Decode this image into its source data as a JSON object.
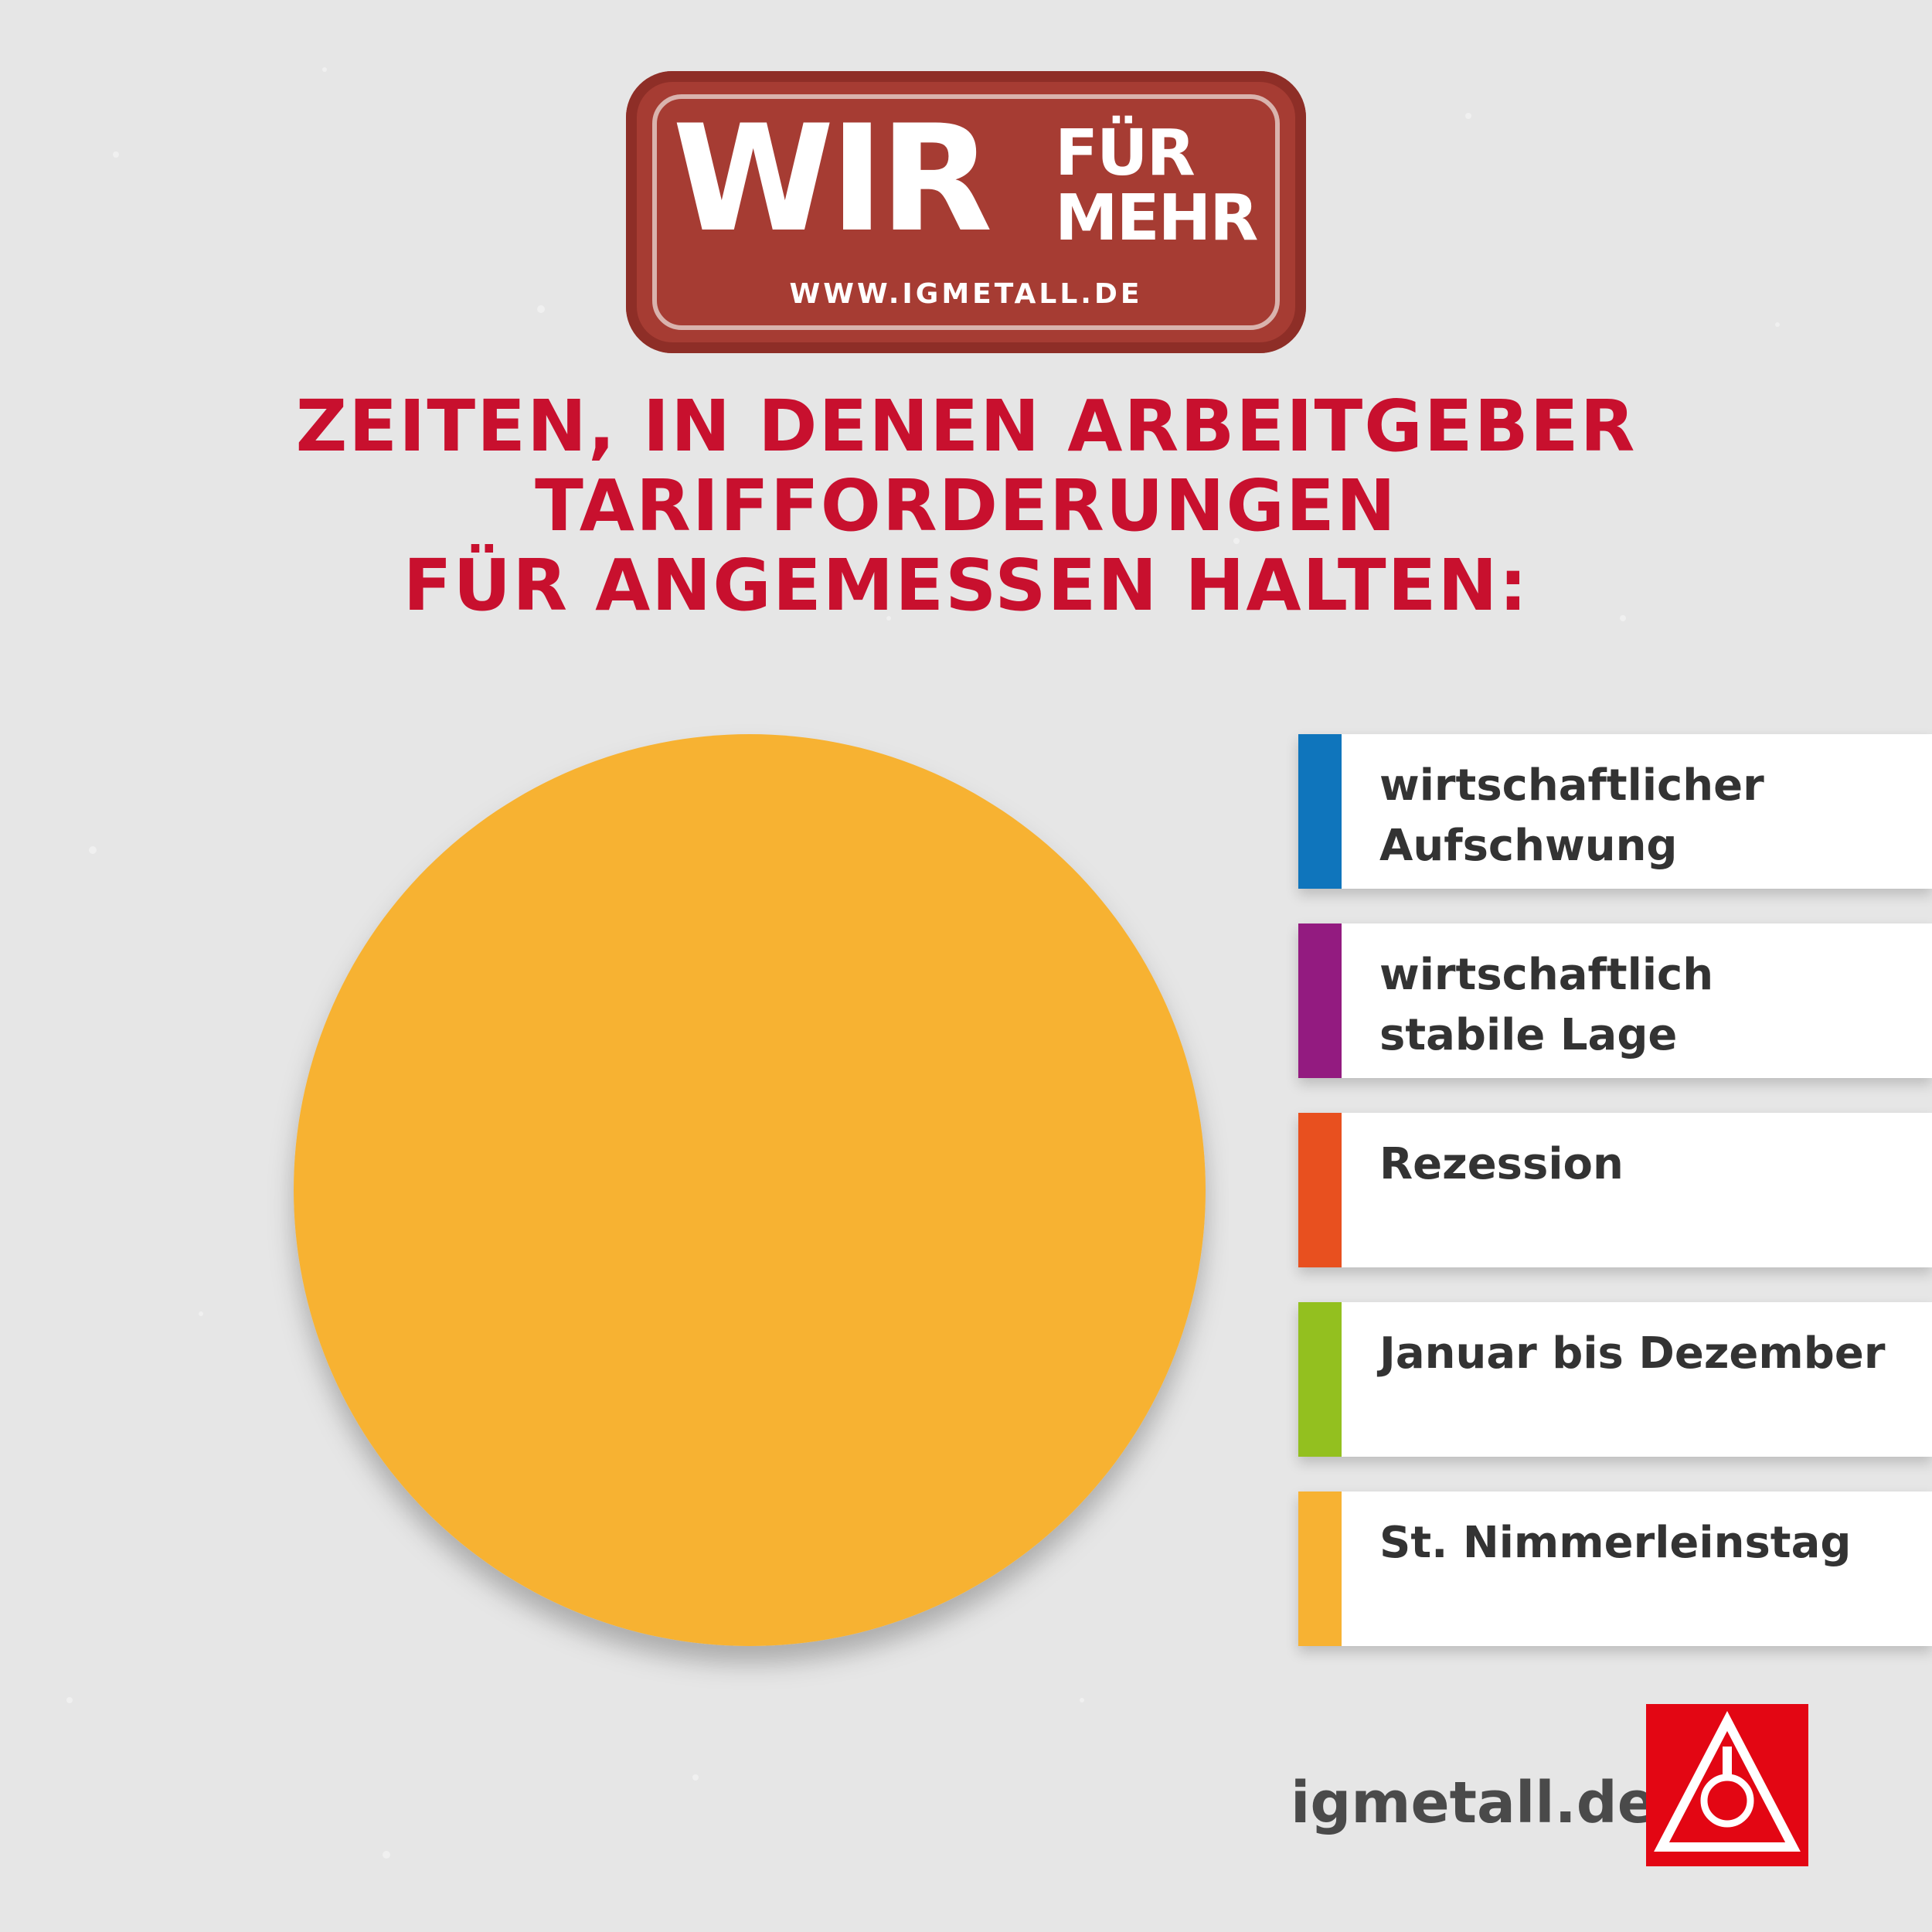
{
  "stamp": {
    "wir": "WIR",
    "fur": "FÜR",
    "mehr": "MEHR",
    "url": "WWW.IGMETALL.DE"
  },
  "headline": {
    "line1": "ZEITEN, IN DENEN ARBEITGEBER",
    "line2": "TARIFFORDERUNGEN",
    "line3": "FÜR ANGEMESSEN HALTEN:"
  },
  "chart_data": {
    "type": "pie",
    "title": "ZEITEN, IN DENEN ARBEITGEBER TARIFFORDERUNGEN FÜR ANGEMESSEN HALTEN:",
    "legend_position": "right",
    "slices": [
      {
        "label": "wirtschaftlicher\nAufschwung",
        "value": 0,
        "color": "#0f75bc"
      },
      {
        "label": "wirtschaftlich\nstabile Lage",
        "value": 0,
        "color": "#931b80"
      },
      {
        "label": "Rezession",
        "value": 0,
        "color": "#e8501f"
      },
      {
        "label": "Januar bis Dezember",
        "value": 0,
        "color": "#93c01f"
      },
      {
        "label": "St. Nimmerleinstag",
        "value": 100,
        "color": "#f7b233"
      }
    ]
  },
  "footer": {
    "url": "igmetall.de",
    "logo_text": "IGM"
  },
  "colors": {
    "brand_red": "#c8102e",
    "stamp_red": "#a63c33",
    "background": "#e6e6e6"
  }
}
